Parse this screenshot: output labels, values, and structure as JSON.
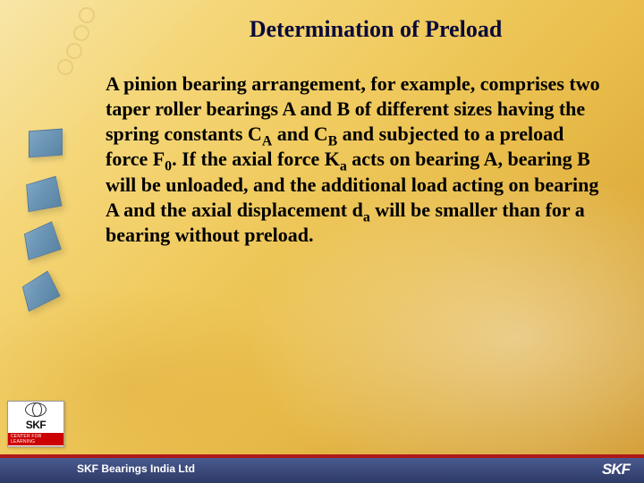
{
  "title": "Determination of Preload",
  "body": {
    "p1a": "A pinion bearing arrangement, for example, comprises two taper roller bearings A and B of different sizes having the spring constants C",
    "subA": "A",
    "p1b": " and C",
    "subB": "B",
    "p1c": " and subjected to a preload force F",
    "sub0": "0",
    "p1d": ". If the axial force K",
    "suba2": "a",
    "p1e": " acts on bearing A, bearing B will be unloaded, and the additional load acting on bearing A and the axial displacement d",
    "suba3": "a",
    "p1f": " will be smaller than for a bearing without preload."
  },
  "logo": {
    "brand": "SKF",
    "tag": "CENTER FOR LEARNING"
  },
  "footer": {
    "company": "SKF Bearings India Ltd",
    "brand": "SKF"
  },
  "colors": {
    "title": "#0a0a3a",
    "footer_bg_top": "#4a5a8f",
    "footer_bg_bottom": "#2d3a66",
    "redline": "#b01818"
  }
}
